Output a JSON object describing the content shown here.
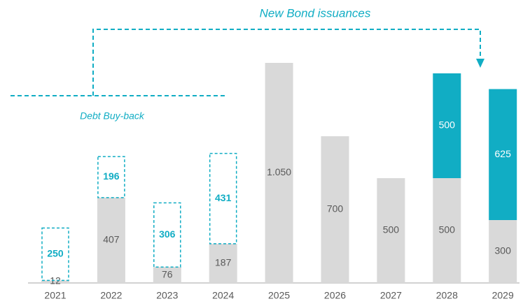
{
  "chart_data": {
    "type": "stacked_bar",
    "categories": [
      "2021",
      "2022",
      "2023",
      "2024",
      "2025",
      "2026",
      "2027",
      "2028",
      "2029"
    ],
    "series": [
      {
        "color": "#d9d9d9",
        "label_color": "#595959",
        "values": [
          12,
          407,
          76,
          187,
          1050,
          700,
          500,
          500,
          300
        ],
        "value_labels": [
          "12",
          "407",
          "76",
          "187",
          "1.050",
          "700",
          "500",
          "500",
          "300"
        ]
      },
      {
        "name": "Debt Buy-back",
        "color": "#11adc4",
        "label_color": "#11adc4",
        "outline": true,
        "values": [
          250,
          196,
          306,
          431,
          null,
          null,
          null,
          null,
          null
        ]
      },
      {
        "name": "New Bond issuances",
        "color": "#11adc4",
        "label_color": "#ffffff",
        "values": [
          null,
          null,
          null,
          null,
          null,
          null,
          null,
          500,
          625
        ]
      }
    ],
    "ylim": [
      0,
      1200
    ]
  }
}
